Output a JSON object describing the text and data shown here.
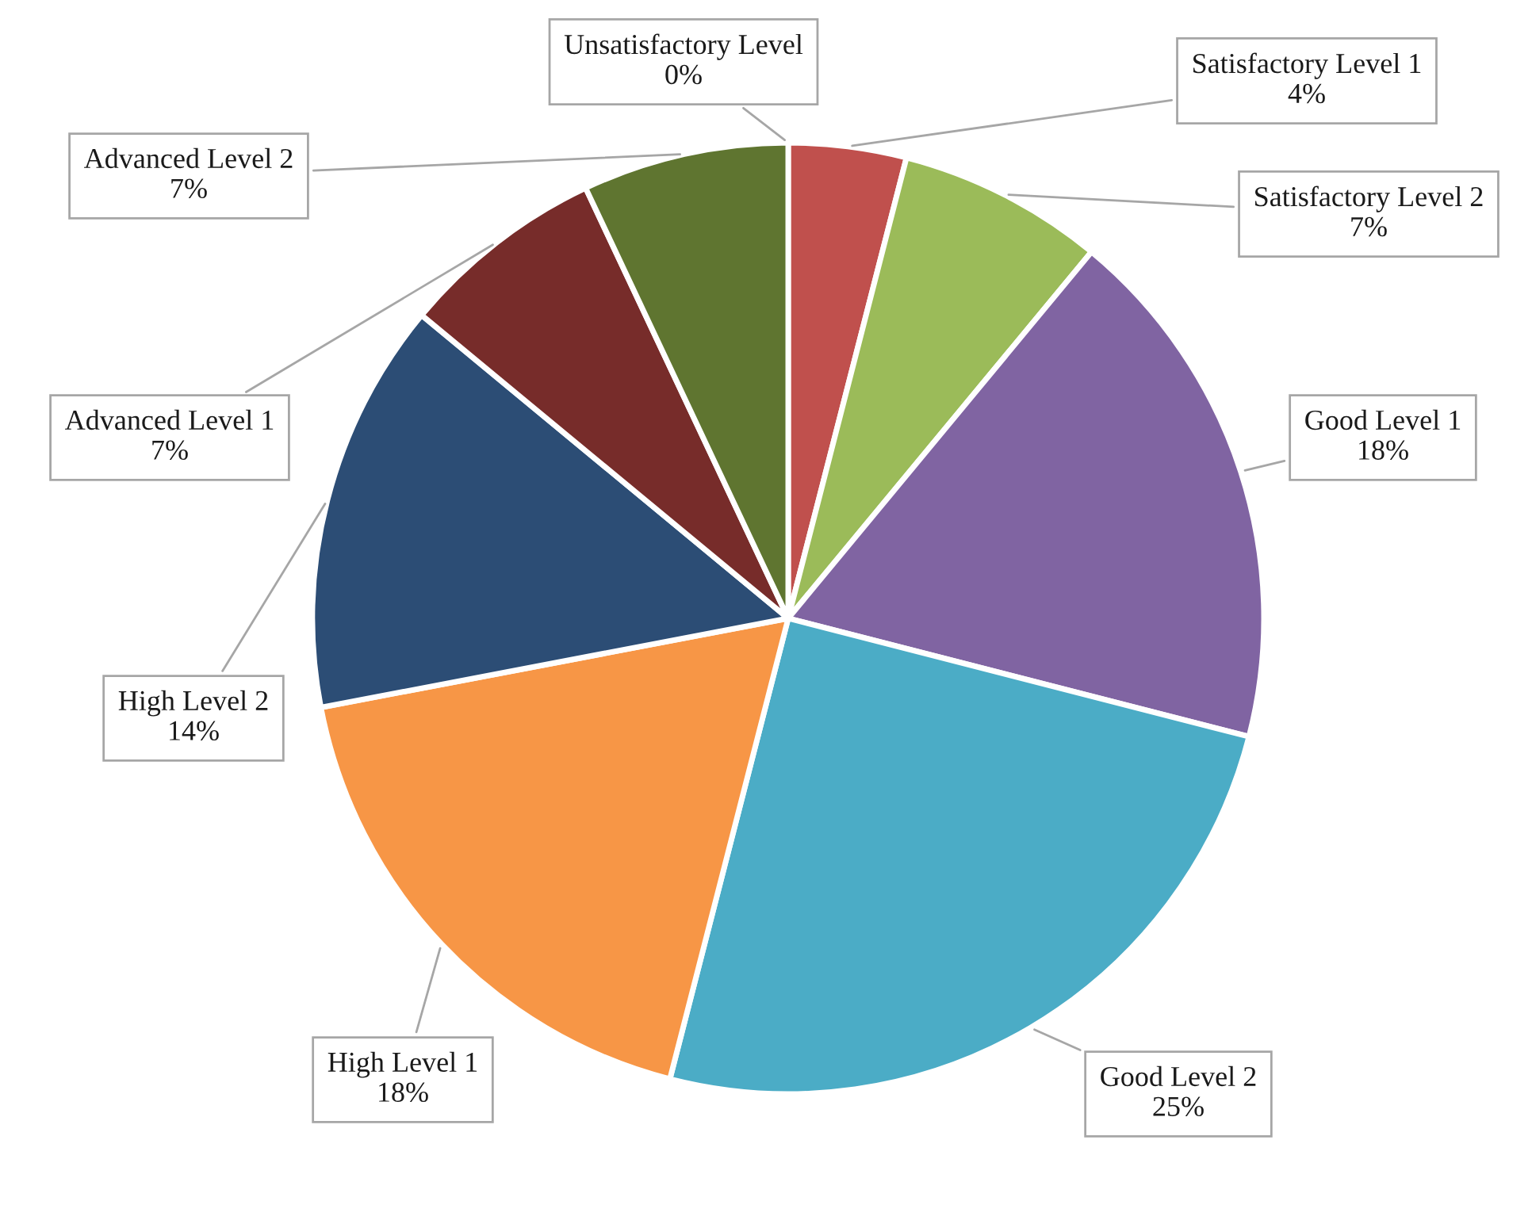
{
  "chart_data": {
    "type": "pie",
    "categories": [
      "Unsatisfactory Level",
      "Satisfactory Level 1",
      "Satisfactory Level 2",
      "Good Level 1",
      "Good Level 2",
      "High Level 1",
      "High Level 2",
      "Advanced Level 1",
      "Advanced Level 2"
    ],
    "values": [
      0,
      4,
      7,
      18,
      25,
      18,
      14,
      7,
      7
    ],
    "value_labels": [
      "0%",
      "4%",
      "7%",
      "18%",
      "25%",
      "18%",
      "14%",
      "7%",
      "7%"
    ],
    "colors": [
      "#4f81bd",
      "#c0504d",
      "#9bbb59",
      "#8064a2",
      "#4bacc6",
      "#f79646",
      "#2c4d75",
      "#772c2a",
      "#5f7530"
    ]
  }
}
